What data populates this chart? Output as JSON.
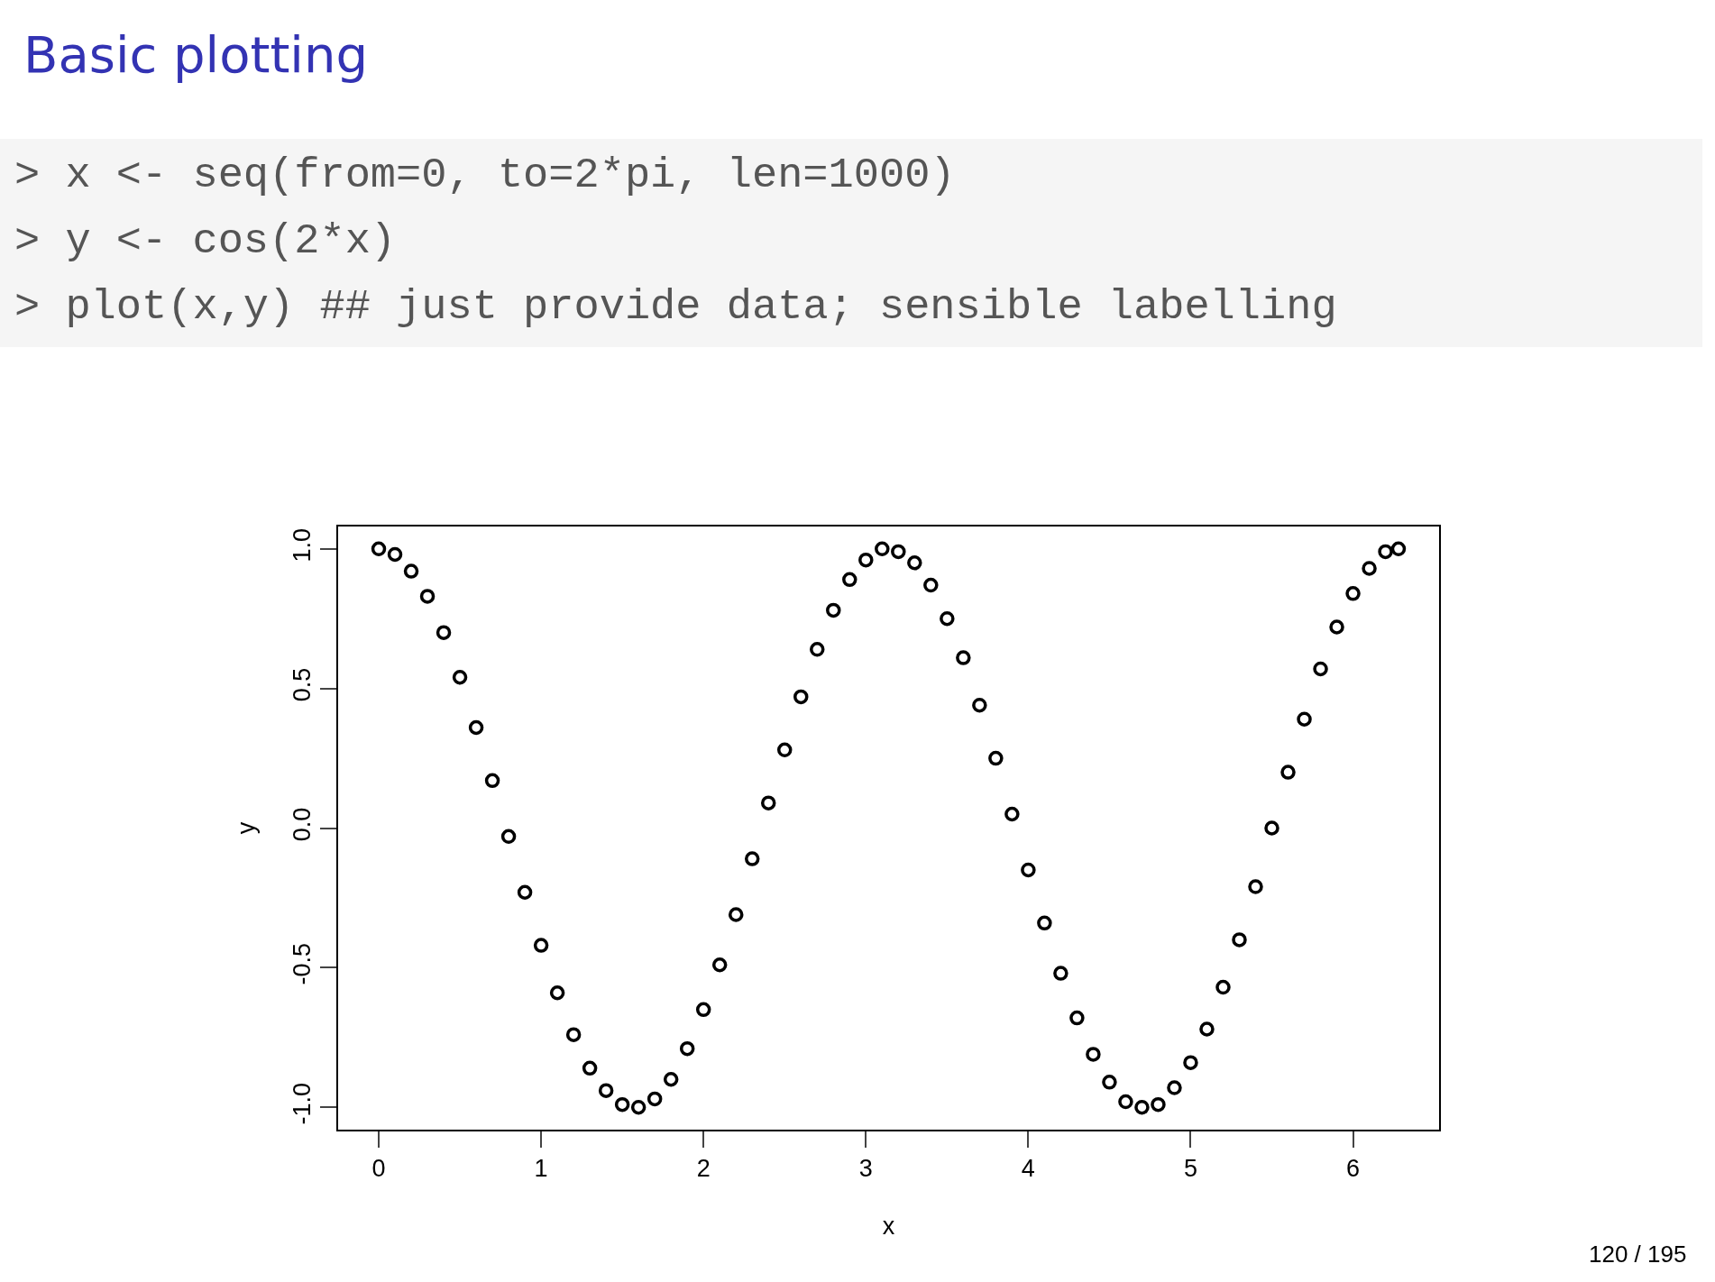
{
  "chart_data": {
    "type": "scatter",
    "title": "Basic plotting",
    "xlabel": "x",
    "ylabel": "y",
    "annotations": [
      "> x <- seq(from=0, to=2*pi, len=1000)",
      "> y <- cos(2*x)",
      "> plot(x,y) ## just provide data; sensible labelling",
      "120 / 195"
    ],
    "x": [
      0,
      0.1,
      0.2,
      0.3,
      0.4,
      0.5,
      0.6,
      0.7,
      0.8,
      0.9,
      1.0,
      1.1,
      1.2,
      1.3,
      1.4,
      1.5,
      1.6,
      1.7,
      1.8,
      1.9,
      2.0,
      2.1,
      2.2,
      2.3,
      2.4,
      2.5,
      2.6,
      2.7,
      2.8,
      2.9,
      3.0,
      3.1,
      3.2,
      3.3,
      3.4,
      3.5,
      3.6,
      3.7,
      3.8,
      3.9,
      4.0,
      4.1,
      4.2,
      4.3,
      4.4,
      4.5,
      4.6,
      4.7,
      4.8,
      4.9,
      5.0,
      5.1,
      5.2,
      5.3,
      5.4,
      5.5,
      5.6,
      5.7,
      5.8,
      5.9,
      6.0,
      6.1,
      6.2,
      6.28
    ],
    "series": [
      {
        "color": "#000000",
        "values": [
          1,
          0.98,
          0.92,
          0.83,
          0.7,
          0.54,
          0.36,
          0.17,
          -0.03,
          -0.23,
          -0.42,
          -0.59,
          -0.74,
          -0.86,
          -0.94,
          -0.99,
          -1.0,
          -0.97,
          -0.9,
          -0.79,
          -0.65,
          -0.49,
          -0.31,
          -0.11,
          0.09,
          0.28,
          0.47,
          0.64,
          0.78,
          0.89,
          0.96,
          1.0,
          0.99,
          0.95,
          0.87,
          0.75,
          0.61,
          0.44,
          0.25,
          0.05,
          -0.15,
          -0.34,
          -0.52,
          -0.68,
          -0.81,
          -0.91,
          -0.98,
          -1.0,
          -0.99,
          -0.93,
          -0.84,
          -0.72,
          -0.57,
          -0.4,
          -0.21,
          0.0,
          0.2,
          0.39,
          0.57,
          0.72,
          0.84,
          0.93,
          0.99,
          1
        ]
      }
    ],
    "marker": "circle",
    "xlim": [
      -0.25,
      6.53
    ],
    "ylim": [
      -1.08,
      1.08
    ],
    "xticks": [
      0,
      1,
      2,
      3,
      4,
      5,
      6
    ],
    "yticks": [
      {
        "value": -1,
        "label": "-1.0"
      },
      {
        "value": -0.5,
        "label": "-0.5"
      },
      {
        "value": 0,
        "label": "0.0"
      },
      {
        "value": 0.5,
        "label": "0.5"
      },
      {
        "value": 1,
        "label": "1.0"
      }
    ]
  }
}
